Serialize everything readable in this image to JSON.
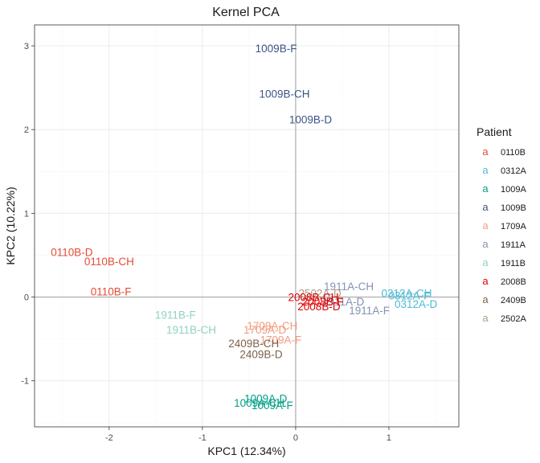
{
  "chart_data": {
    "type": "scatter",
    "title": "Kernel PCA",
    "xlabel": "KPC1 (12.34%)",
    "ylabel": "KPC2 (10.22%)",
    "xlim": [
      -2.8,
      1.75
    ],
    "ylim": [
      -1.55,
      3.25
    ],
    "x_ticks": [
      -2,
      -1,
      0,
      1
    ],
    "y_ticks": [
      -1,
      0,
      1,
      2,
      3
    ],
    "x_tick_labels": [
      "-2",
      "-1",
      "0",
      "1"
    ],
    "y_tick_labels": [
      "-1",
      "0",
      "1",
      "2",
      "3"
    ],
    "grid": true,
    "legend": {
      "title": "Patient",
      "placement": "right",
      "key_glyph": "a",
      "entries": [
        {
          "name": "0110B",
          "color": "#E64B35"
        },
        {
          "name": "0312A",
          "color": "#4DBBD5"
        },
        {
          "name": "1009A",
          "color": "#00A087"
        },
        {
          "name": "1009B",
          "color": "#3C5488"
        },
        {
          "name": "1709A",
          "color": "#F39B7F"
        },
        {
          "name": "1911A",
          "color": "#8491B4"
        },
        {
          "name": "1911B",
          "color": "#91D1C2"
        },
        {
          "name": "2008B",
          "color": "#DC0000"
        },
        {
          "name": "2409B",
          "color": "#7E6148"
        },
        {
          "name": "2502A",
          "color": "#B09C85"
        }
      ]
    },
    "points": [
      {
        "label": "1009B-F",
        "patient": "1009B",
        "x": -0.21,
        "y": 2.97
      },
      {
        "label": "1009B-CH",
        "patient": "1009B",
        "x": -0.12,
        "y": 2.43
      },
      {
        "label": "1009B-D",
        "patient": "1009B",
        "x": 0.16,
        "y": 2.12
      },
      {
        "label": "0110B-D",
        "patient": "0110B",
        "x": -2.4,
        "y": 0.54
      },
      {
        "label": "0110B-CH",
        "patient": "0110B",
        "x": -2.0,
        "y": 0.43
      },
      {
        "label": "0110B-F",
        "patient": "0110B",
        "x": -1.98,
        "y": 0.07
      },
      {
        "label": "1911B-F",
        "patient": "1911B",
        "x": -1.29,
        "y": -0.21
      },
      {
        "label": "1911B-CH",
        "patient": "1911B",
        "x": -1.12,
        "y": -0.39
      },
      {
        "label": "1911A-CH",
        "patient": "1911A",
        "x": 0.57,
        "y": 0.13
      },
      {
        "label": "1911A-D",
        "patient": "1911A",
        "x": 0.51,
        "y": -0.05
      },
      {
        "label": "1911A-F",
        "patient": "1911A",
        "x": 0.79,
        "y": -0.16
      },
      {
        "label": "2502A-D",
        "patient": "2502A",
        "x": 0.26,
        "y": 0.05
      },
      {
        "label": "2008B-CH",
        "patient": "2008B",
        "x": 0.19,
        "y": 0.0
      },
      {
        "label": "2008B-F",
        "patient": "2008B",
        "x": 0.29,
        "y": -0.05
      },
      {
        "label": "2008B-D",
        "patient": "2008B",
        "x": 0.25,
        "y": -0.11
      },
      {
        "label": "0312A-CH",
        "patient": "0312A",
        "x": 1.19,
        "y": 0.05
      },
      {
        "label": "0312A-F",
        "patient": "0312A",
        "x": 1.22,
        "y": 0.02
      },
      {
        "label": "0312A-D",
        "patient": "0312A",
        "x": 1.29,
        "y": -0.08
      },
      {
        "label": "1709A-CH",
        "patient": "1709A",
        "x": -0.25,
        "y": -0.34
      },
      {
        "label": "1709A-D",
        "patient": "1709A",
        "x": -0.33,
        "y": -0.39
      },
      {
        "label": "1709A-F",
        "patient": "1709A",
        "x": -0.16,
        "y": -0.51
      },
      {
        "label": "2409B-CH",
        "patient": "2409B",
        "x": -0.45,
        "y": -0.55
      },
      {
        "label": "2409B-D",
        "patient": "2409B",
        "x": -0.37,
        "y": -0.68
      },
      {
        "label": "1009A-D",
        "patient": "1009A",
        "x": -0.32,
        "y": -1.21
      },
      {
        "label": "1009A-CH",
        "patient": "1009A",
        "x": -0.39,
        "y": -1.26
      },
      {
        "label": "1009A-F",
        "patient": "1009A",
        "x": -0.25,
        "y": -1.29
      }
    ]
  }
}
